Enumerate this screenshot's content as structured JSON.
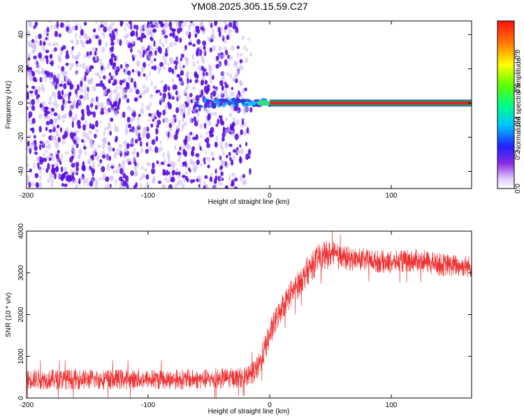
{
  "title": "YM08.2025.305.15.59.C27",
  "colors": {
    "speckle": "#5a10e0",
    "speckle_light": "#c8b4f4",
    "line_core": "#e81e2a",
    "line_edge": "#1aa81a",
    "snr": "#ee3333"
  },
  "chart_data": [
    {
      "type": "heatmap",
      "xlabel": "Height of straight line (km)",
      "ylabel": "Frequency (Hz)",
      "xlim": [
        -200,
        166
      ],
      "ylim": [
        -50,
        48
      ],
      "x_ticks": [
        -200,
        -100,
        0,
        100
      ],
      "y_ticks": [
        -40,
        -20,
        0,
        20,
        40
      ],
      "colorbar": {
        "label": "Normalized spectral amplitude",
        "range": [
          0,
          1
        ],
        "ticks": [
          "0.0",
          "0.2",
          "0.4",
          "0.6",
          "0.8"
        ],
        "tick_values": [
          0,
          0.2,
          0.4,
          0.6,
          0.8
        ],
        "colormap": "rainbow"
      },
      "features": {
        "noise_region_x": [
          -200,
          -15
        ],
        "noise_amplitude": 0.15,
        "signal_line_frequency_hz": 0,
        "signal_line_x": [
          0,
          166
        ],
        "signal_line_amplitude": 1.0,
        "transition_x": [
          -65,
          0
        ],
        "transition_amplitude": 0.3
      }
    },
    {
      "type": "line",
      "xlabel": "Height of straight line (km)",
      "ylabel": "SNR (10 * v/v)",
      "xlim": [
        -200,
        166
      ],
      "ylim": [
        0,
        4000
      ],
      "x_ticks": [
        -200,
        -100,
        0,
        100
      ],
      "y_ticks": [
        0,
        1000,
        2000,
        3000,
        4000
      ],
      "series": [
        {
          "x": [
            -200,
            -150,
            -100,
            -50,
            -20,
            -10,
            0,
            10,
            20,
            30,
            40,
            50,
            60,
            80,
            100,
            120,
            140,
            166
          ],
          "y_center": [
            450,
            450,
            450,
            450,
            500,
            700,
            1500,
            2200,
            2600,
            3000,
            3350,
            3450,
            3350,
            3300,
            3250,
            3300,
            3200,
            3150
          ],
          "noise_amplitude": [
            250,
            250,
            250,
            250,
            250,
            300,
            350,
            350,
            350,
            350,
            350,
            350,
            300,
            280,
            280,
            280,
            280,
            280
          ]
        }
      ]
    }
  ]
}
